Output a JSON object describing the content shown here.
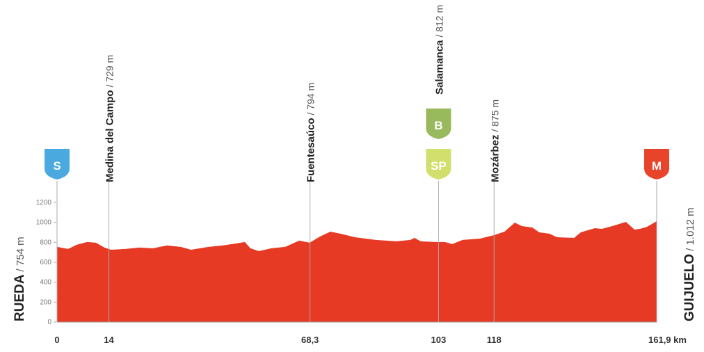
{
  "chart_data": {
    "type": "area",
    "color": "#e63a24",
    "x": [
      0,
      3.0,
      5.3,
      8.1,
      10.5,
      12.8,
      14.6,
      18.4,
      22.2,
      25.9,
      29.7,
      33.4,
      36.2,
      40.9,
      44.7,
      48.5,
      50.7,
      52.2,
      54.5,
      57.9,
      61.6,
      65.4,
      68.2,
      71.0,
      73.8,
      76.6,
      80.4,
      86.0,
      91.7,
      95.4,
      96.5,
      98.2,
      101.9,
      104.7,
      106.7,
      109.5,
      114.2,
      118.0,
      120.8,
      123.6,
      125.5,
      128.3,
      130.2,
      133.0,
      134.9,
      139.6,
      141.4,
      145.2,
      147.1,
      149.9,
      153.6,
      155.9,
      157.4,
      159.3,
      161.9
    ],
    "values": [
      754,
      733,
      775,
      803,
      796,
      747,
      726,
      733,
      747,
      740,
      768,
      754,
      726,
      754,
      768,
      789,
      803,
      740,
      712,
      740,
      754,
      817,
      796,
      858,
      907,
      886,
      851,
      824,
      810,
      824,
      844,
      810,
      803,
      803,
      782,
      824,
      837,
      872,
      907,
      998,
      963,
      949,
      900,
      886,
      851,
      844,
      900,
      942,
      935,
      963,
      1005,
      928,
      935,
      956,
      1012
    ],
    "xlim": [
      0,
      161.9
    ],
    "ylim": [
      0,
      1200
    ],
    "xticks": [
      0,
      14,
      {
        "value": 68.3,
        "label": "68,3"
      },
      103,
      118,
      {
        "value": 161.9,
        "label": "161,9 km"
      }
    ],
    "yticks": [
      0,
      200,
      400,
      600,
      800,
      1000,
      1200
    ],
    "start": {
      "name": "RUEDA",
      "elevation_label": "/ 754 m"
    },
    "finish": {
      "name": "GUIJUELO",
      "elevation_label": "/ 1.012 m"
    },
    "waypoints": [
      {
        "km": 14,
        "name": "Medina del Campo",
        "elevation_label": "/ 729 m"
      },
      {
        "km": 68.3,
        "name": "Fuentesaúco",
        "elevation_label": "/ 794 m"
      },
      {
        "km": 103,
        "name": "Salamanca",
        "elevation_label": "/ 812 m"
      },
      {
        "km": 118,
        "name": "Mozárbez",
        "elevation_label": "/ 875 m"
      }
    ],
    "badges": [
      {
        "km": 0,
        "label": "S",
        "color": "#4aa9de"
      },
      {
        "km": 103,
        "label": "B",
        "color": "#98ba5c"
      },
      {
        "km": 103,
        "label": "SP",
        "color": "#d2df6c"
      },
      {
        "km": 161.9,
        "label": "M",
        "color": "#e8432b"
      }
    ]
  }
}
